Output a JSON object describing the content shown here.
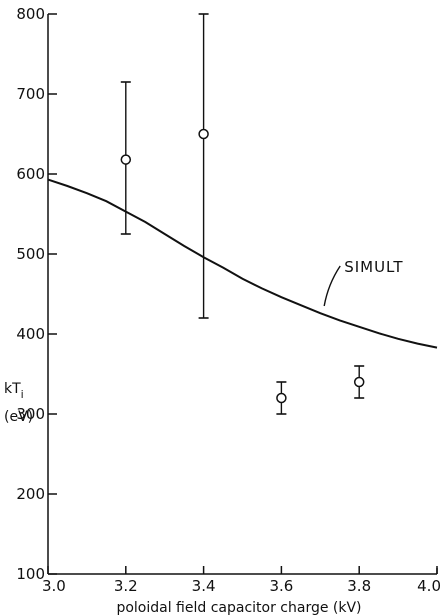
{
  "chart_data": {
    "type": "scatter",
    "title": "",
    "xlabel": "poloidal field capacitor charge (kV)",
    "ylabel": {
      "quantity": "kT",
      "subscript": "i",
      "unit": "(eV)"
    },
    "xlim": [
      3.0,
      4.0
    ],
    "ylim": [
      100,
      800
    ],
    "x_ticks": [
      3.0,
      3.2,
      3.4,
      3.6,
      3.8,
      4.0
    ],
    "x_tick_labels": [
      "3.0",
      "3.2",
      "3.4",
      "3.6",
      "3.8",
      "4.0"
    ],
    "y_ticks": [
      100,
      200,
      300,
      400,
      500,
      600,
      700,
      800
    ],
    "y_tick_labels": [
      "100",
      "200",
      "300",
      "400",
      "500",
      "600",
      "700",
      "800"
    ],
    "grid": false,
    "colors": {
      "ink": "#111111",
      "background": "#ffffff"
    },
    "measurements": {
      "marker": "open-circle",
      "points": [
        {
          "x": 3.2,
          "y": 618,
          "y_low": 525,
          "y_high": 715
        },
        {
          "x": 3.4,
          "y": 650,
          "y_low": 420,
          "y_high": 800
        },
        {
          "x": 3.6,
          "y": 320,
          "y_low": 300,
          "y_high": 340
        },
        {
          "x": 3.8,
          "y": 340,
          "y_low": 320,
          "y_high": 360
        }
      ]
    },
    "simulation": {
      "style": "solid-line",
      "x": [
        3.0,
        3.05,
        3.1,
        3.15,
        3.2,
        3.25,
        3.3,
        3.35,
        3.4,
        3.45,
        3.5,
        3.55,
        3.6,
        3.65,
        3.7,
        3.75,
        3.8,
        3.85,
        3.9,
        3.95,
        4.0
      ],
      "y": [
        593,
        585,
        576,
        566,
        553,
        540,
        525,
        510,
        496,
        483,
        469,
        457,
        446,
        436,
        426,
        417,
        409,
        401,
        394,
        388,
        383
      ]
    },
    "annotations": [
      {
        "text": "SIMULT",
        "points_to_x": 3.71,
        "points_to_y": 435
      }
    ]
  }
}
